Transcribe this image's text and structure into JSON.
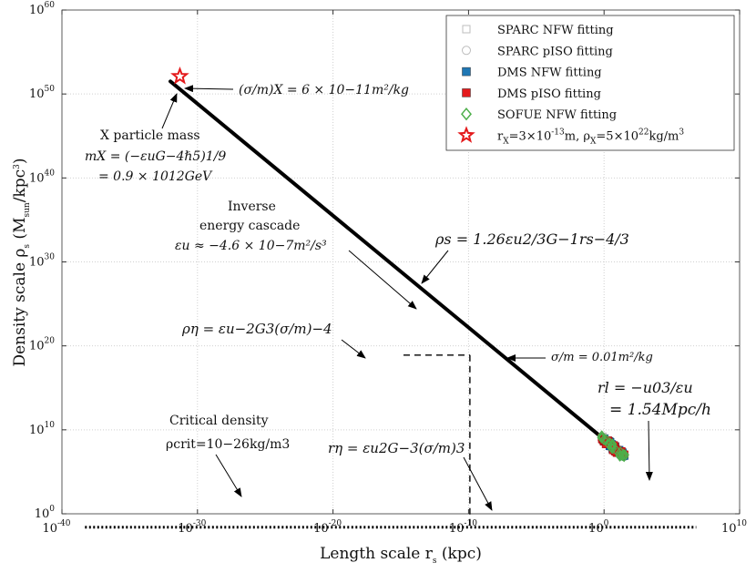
{
  "chart_data": {
    "type": "scatter",
    "title": "",
    "xlabel": "Length scale r",
    "xlabel_sub": "s",
    "xlabel_unit": "(kpc)",
    "ylabel": "Density scale ρ",
    "ylabel_sub": "s",
    "ylabel_unit": "(M",
    "ylabel_unit_sub": "sun",
    "ylabel_unit_tail": "/kpc",
    "ylabel_unit_sup": "3",
    "ylabel_unit_close": ")",
    "x_scale": "log",
    "y_scale": "log",
    "xlim_exp": [
      -40,
      10
    ],
    "ylim_exp": [
      0,
      60
    ],
    "x_ticks": [
      {
        "base": "10",
        "exp": "-40"
      },
      {
        "base": "10",
        "exp": "-30"
      },
      {
        "base": "10",
        "exp": "-20"
      },
      {
        "base": "10",
        "exp": "-10"
      },
      {
        "base": "10",
        "exp": "0"
      },
      {
        "base": "10",
        "exp": "10"
      }
    ],
    "y_ticks": [
      {
        "base": "10",
        "exp": "0"
      },
      {
        "base": "10",
        "exp": "10"
      },
      {
        "base": "10",
        "exp": "20"
      },
      {
        "base": "10",
        "exp": "30"
      },
      {
        "base": "10",
        "exp": "40"
      },
      {
        "base": "10",
        "exp": "50"
      },
      {
        "base": "10",
        "exp": "60"
      }
    ],
    "grid": true,
    "legend_position": "top-right",
    "legend": [
      {
        "label": "SPARC NFW fitting",
        "marker": "square-open",
        "color": "#bdbdbd"
      },
      {
        "label": "SPARC pISO fitting",
        "marker": "circle-open",
        "color": "#bdbdbd"
      },
      {
        "label": "DMS NFW fitting",
        "marker": "square-filled",
        "color": "#1f77b4"
      },
      {
        "label": "DMS pISO fitting",
        "marker": "square-filled",
        "color": "#e41a1c"
      },
      {
        "label": "SOFUE NFW fitting",
        "marker": "diamond-open",
        "color": "#4daf4a"
      },
      {
        "label": "r",
        "sub": "X",
        "mid": "=3×10",
        "sup": "-13",
        "mid2": "m, ρ",
        "sub2": "X",
        "mid3": "=5×10",
        "sup2": "22",
        "tail": "kg/m",
        "sup3": "3",
        "marker": "star",
        "color": "#e41a1c"
      }
    ],
    "cascade_line": {
      "x_exp": [
        -32,
        1.4
      ],
      "y_exp": [
        51.5,
        7.0
      ],
      "color": "#000000"
    },
    "star_point": {
      "x_exp": -31.3,
      "y_exp": 52.1
    },
    "critical_density_line": {
      "x_exp": [
        -38.3,
        6.8
      ],
      "y_exp": [
        -1.6,
        -1.6
      ]
    },
    "dashed_lines": [
      {
        "x_exp": [
          -14.8,
          -9.9
        ],
        "y_exp": [
          18.9,
          18.9
        ]
      },
      {
        "x_exp": [
          -9.9,
          -9.9
        ],
        "y_exp": [
          18.9,
          -1.6
        ]
      }
    ],
    "galaxy_scatter": {
      "x_exp_range": [
        -0.2,
        1.6
      ],
      "y_exp_range": [
        6.8,
        9.3
      ],
      "series": [
        {
          "name": "SPARC NFW fitting",
          "count": 60
        },
        {
          "name": "SPARC pISO fitting",
          "count": 60
        },
        {
          "name": "DMS NFW fitting",
          "count": 35
        },
        {
          "name": "DMS pISO fitting",
          "count": 35
        },
        {
          "name": "SOFUE NFW fitting",
          "count": 25
        }
      ]
    },
    "annotations": {
      "sigma_x": "(σ/m)X = 6 × 10−11m²/kg",
      "x_particle_1": "X particle mass",
      "x_particle_2": "mX = (−εuG−4ℏ5)1/9",
      "x_particle_3": "= 0.9 × 1012GeV",
      "inverse_1": "Inverse",
      "inverse_2": "energy cascade",
      "inverse_3": "εu ≈ −4.6 × 10−7m²/s³",
      "rho_s": "ρs = 1.26εu2/3G−1rs−4/3",
      "rho_eta": "ρη = εu−2G3(σ/m)−4",
      "sigma_001": "σ/m = 0.01m²/kg",
      "r_l_1": "rl = −u03/εu",
      "r_l_2": "= 1.54Mpc/h",
      "crit_1": "Critical density",
      "crit_2": "ρcrit=10−26kg/m3",
      "r_eta": "rη = εu2G−3(σ/m)3"
    }
  }
}
